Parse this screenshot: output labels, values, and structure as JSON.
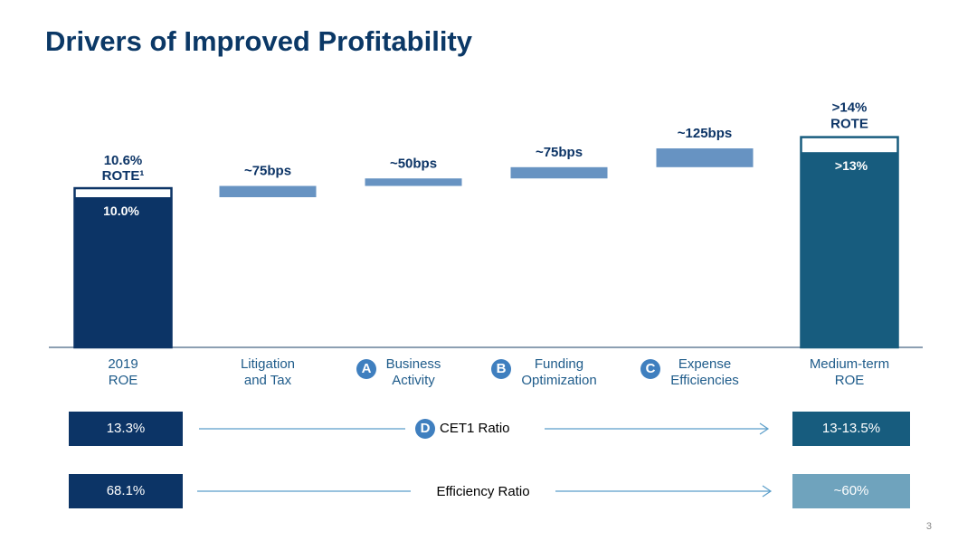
{
  "title": "Drivers of Improved Profitability",
  "chart_data": {
    "type": "bar",
    "subtype": "waterfall",
    "categories": [
      {
        "line1": "2019",
        "line2": "ROE",
        "badge": ""
      },
      {
        "line1": "Litigation",
        "line2": "and Tax",
        "badge": ""
      },
      {
        "line1": "Business",
        "line2": "Activity",
        "badge": "A"
      },
      {
        "line1": "Funding",
        "line2": "Optimization",
        "badge": "B"
      },
      {
        "line1": "Expense",
        "line2": "Efficiencies",
        "badge": "C"
      },
      {
        "line1": "Medium-term",
        "line2": "ROE",
        "badge": ""
      }
    ],
    "start": {
      "roe": 10.0,
      "rote": 10.6,
      "inside_label": "10.0%",
      "top_label_1": "10.6%",
      "top_label_2": "ROTE¹"
    },
    "steps": [
      {
        "bps": 75,
        "label": "~75bps"
      },
      {
        "bps": 50,
        "label": "~50bps"
      },
      {
        "bps": 75,
        "label": "~75bps"
      },
      {
        "bps": 125,
        "label": "~125bps"
      }
    ],
    "end": {
      "roe": 13.0,
      "rote": 14.0,
      "inside_label": ">13%",
      "top_label_1": ">14%",
      "top_label_2": "ROTE"
    },
    "colors": {
      "start": "#0c3466",
      "step": "#6793c2",
      "end": "#175c7e",
      "label": "#0c3466"
    }
  },
  "ratios": [
    {
      "badge": "D",
      "label": "CET1 Ratio",
      "from": "13.3%",
      "to": "13-13.5%",
      "from_color": "#0c3466",
      "to_color": "#175c7e"
    },
    {
      "badge": "",
      "label": "Efficiency Ratio",
      "from": "68.1%",
      "to": "~60%",
      "from_color": "#0c3466",
      "to_color": "#6fa3bd"
    }
  ],
  "page_number": "3"
}
